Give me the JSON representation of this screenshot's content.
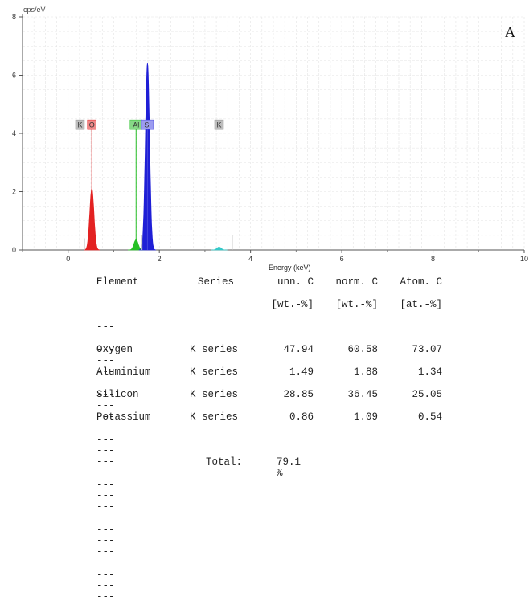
{
  "panel_label": "A",
  "chart_data": {
    "type": "area",
    "ylabel": "cps/eV",
    "xlabel": "Energy (keV)",
    "xlim": [
      -1,
      10
    ],
    "ylim": [
      0,
      8
    ],
    "xticks": [
      0,
      2,
      4,
      6,
      8,
      10
    ],
    "yticks": [
      0,
      2,
      4,
      6,
      8
    ],
    "grid": true,
    "peaks": [
      {
        "element": "O",
        "energy_kev": 0.52,
        "height": 2.1,
        "color": "#e32222"
      },
      {
        "element": "Al",
        "energy_kev": 1.49,
        "height": 0.35,
        "color": "#27c027"
      },
      {
        "element": "Si",
        "energy_kev": 1.74,
        "height": 6.4,
        "color": "#1f1fd6"
      },
      {
        "element": "K",
        "energy_kev": 3.31,
        "height": 0.1,
        "color": "#35c9c9"
      }
    ],
    "marker_lines": [
      {
        "label": "K",
        "energy_kev": 0.26,
        "color": "#8f8f8f",
        "label_bg": "#bdbdbd"
      },
      {
        "label": "O",
        "energy_kev": 0.52,
        "color": "#e32222",
        "label_bg": "#f08a8a"
      },
      {
        "label": "Al",
        "energy_kev": 1.49,
        "color": "#27c027",
        "label_bg": "#86d886"
      },
      {
        "label": "Si",
        "energy_kev": 1.74,
        "color": "#4444dd",
        "label_bg": "#9c9cf0"
      },
      {
        "label": "K",
        "energy_kev": 3.31,
        "color": "#8f8f8f",
        "label_bg": "#bdbdbd"
      }
    ],
    "minor_lines": [
      {
        "energy_kev": 0.36,
        "height": 0.4
      },
      {
        "energy_kev": 1.62,
        "height": 0.5
      },
      {
        "energy_kev": 3.6,
        "height": 0.5
      }
    ]
  },
  "table": {
    "headers": [
      "Element",
      "Series",
      "unn. C",
      "norm. C",
      "Atom. C"
    ],
    "units": [
      "",
      "",
      "[wt.-%]",
      "[wt.-%]",
      "[at.-%]"
    ],
    "separator": "----------------------------------------------",
    "rows": [
      [
        "Oxygen",
        "K series",
        "47.94",
        "60.58",
        "73.07"
      ],
      [
        "Aluminium",
        "K series",
        "1.49",
        "1.88",
        "1.34"
      ],
      [
        "Silicon",
        "K series",
        "28.85",
        "36.45",
        "25.05"
      ],
      [
        "Potassium",
        "K series",
        "0.86",
        "1.09",
        "0.54"
      ]
    ],
    "total_label": "Total:",
    "total_value": "79.1 %"
  }
}
